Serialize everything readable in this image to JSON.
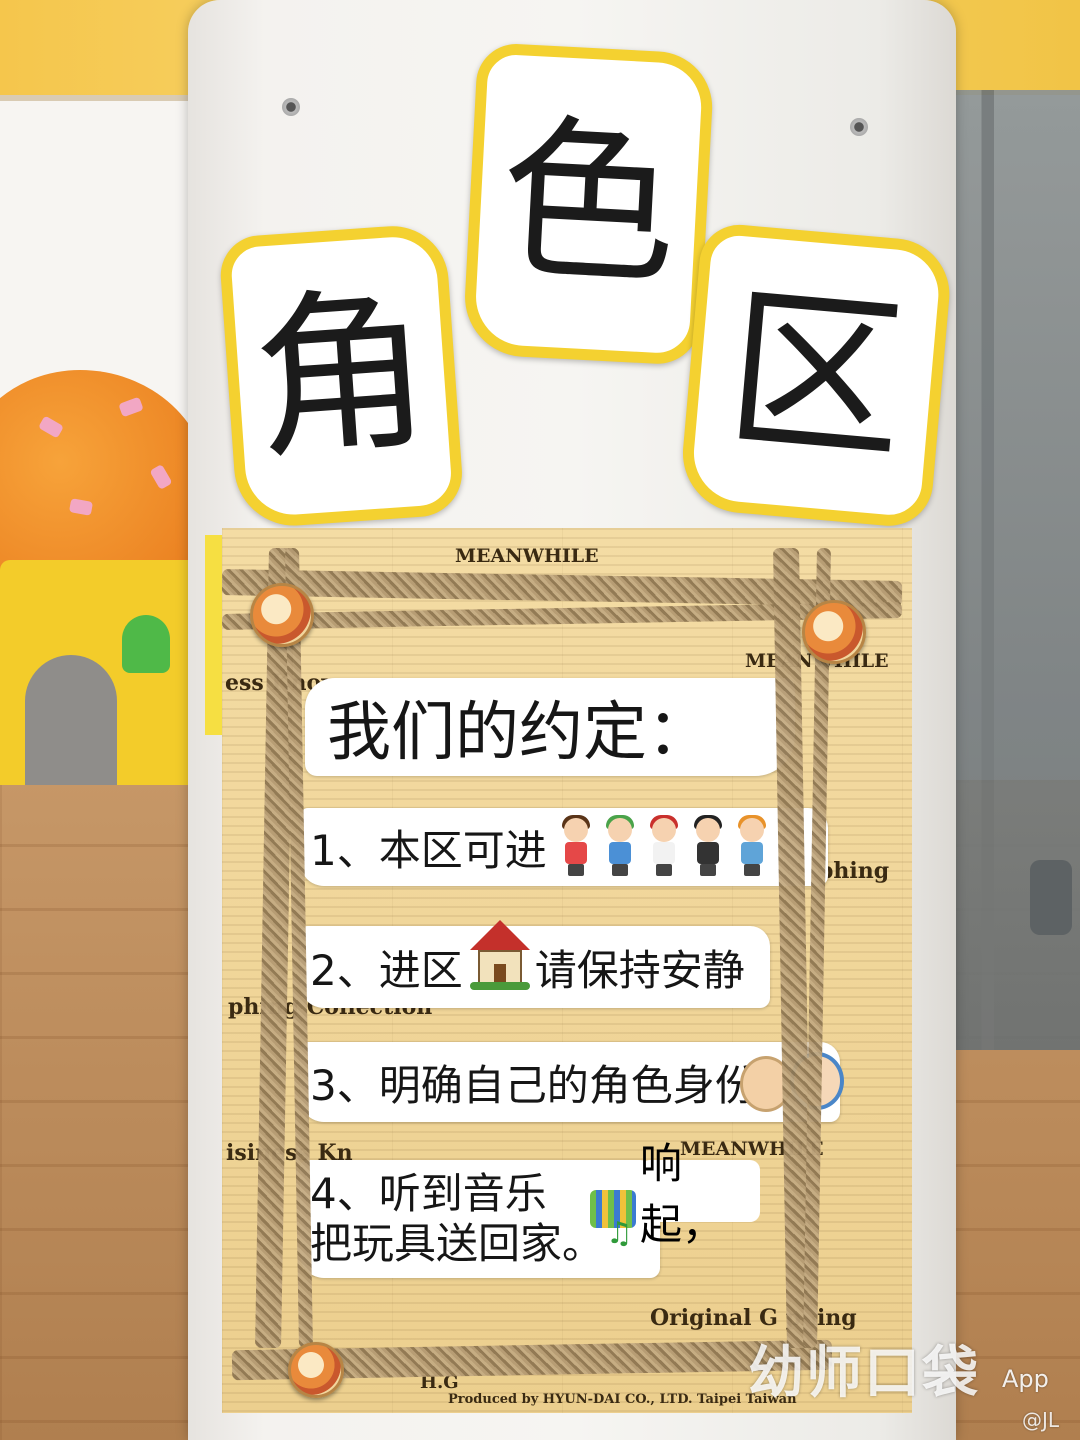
{
  "sign": {
    "title_chars": [
      "角",
      "色",
      "区"
    ],
    "heading": "我们的约定：",
    "rules": {
      "rule1": "1、本区可进",
      "rule2_a": "2、进区",
      "rule2_b": "请保持安静",
      "rule3": "3、明确自己的角色身份",
      "rule4_line1": "4、听到音乐",
      "rule4_line1_end": "响起，",
      "rule4_line2": "把玩具送回家。"
    }
  },
  "newspaper": {
    "fragments": [
      "MEANWHILE",
      "MEANWHILE",
      "ess Know",
      "phing",
      "phing Collection",
      "isiness Kn",
      "MEANWHILE",
      "Original G phing",
      "H.G",
      "Produced by HYUN-DAI CO., LTD. Taipei Taiwan"
    ]
  },
  "watermark": {
    "brand": "幼师口袋",
    "suffix": "App",
    "user": "@JL"
  },
  "colors": {
    "tile_border": "#f4d130",
    "paper": "#f0d598",
    "twine": "#a88d63",
    "board": "#f4f2ef"
  },
  "icons": [
    "children-figures-icon",
    "house-icon",
    "faces-icon",
    "music-keyboard-icon"
  ]
}
